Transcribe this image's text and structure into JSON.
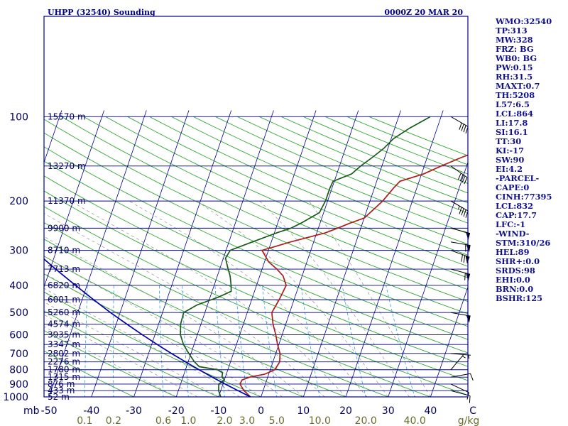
{
  "header": {
    "station": "UHPP (32540) Sounding",
    "time": "0000Z 20 MAR 20"
  },
  "colors": {
    "frame": "#00008b",
    "isobar": "#00008b",
    "isotherm": "#00008b",
    "dry_adiabat": "#2fa82f",
    "moist_adiabat": "#909090",
    "mixing_ratio": "#2ea0e6",
    "temperature": "#b01a1a",
    "dewpoint": "#1a5a1a",
    "parcel": "#0000aa",
    "label": "#000060",
    "bottom_label": "#6b6b2a",
    "index_text": "#10108c",
    "wind": "#000000"
  },
  "indices": [
    "WMO:32540",
    "TP:313",
    "MW:328",
    "FRZ: BG",
    "WB0: BG",
    "PW:0.15",
    "RH:31.5",
    "MAXT:0.7",
    "TH:5208",
    "L57:6.5",
    "LCL:864",
    "LI:17.8",
    "SI:16.1",
    "TT:30",
    "KI:-17",
    "SW:90",
    "EI:4.2",
    "-PARCEL-",
    "CAPE:0",
    "CINH:77395",
    "LCL:832",
    "CAP:17.7",
    "LFC:-1",
    "-WIND-",
    "STM:310/26",
    "HEL:89",
    "SHR+:0.0",
    "SRDS:98",
    "EHI:0.0",
    "BRN:0.0",
    "BSHR:125"
  ],
  "chart_data": {
    "type": "line",
    "title": "UHPP (32540) Sounding",
    "subtitle": "0000Z 20 MAR 20",
    "xlabel": "C",
    "ylabel": "mb",
    "ylim": [
      1000,
      100
    ],
    "xlim": [
      -50,
      50
    ],
    "y_scale": "log-pressure",
    "pressure_ticks": [
      100,
      200,
      300,
      400,
      500,
      600,
      700,
      800,
      900,
      1000
    ],
    "temperature_ticks": [
      -50,
      -40,
      -30,
      -20,
      -10,
      0,
      10,
      20,
      30,
      40,
      50
    ],
    "temperature_tick_labels": [
      "-50",
      "-40",
      "-30",
      "-20",
      "-10",
      "0",
      "10",
      "20",
      "30",
      "40",
      "C"
    ],
    "mixing_ratio_labels": [
      "0.1",
      "0.2",
      "0.6",
      "1.0",
      "2.0",
      "3.0",
      "5.0",
      "10.0",
      "20.0",
      "40.0",
      "g/kg"
    ],
    "mixing_ratio_values": [
      0.1,
      0.2,
      0.6,
      1.0,
      2.0,
      3.0,
      5.0,
      10.0,
      20.0,
      40.0
    ],
    "height_labels": [
      {
        "p": 1000,
        "text": "52 m"
      },
      {
        "p": 950,
        "text": "433 m"
      },
      {
        "p": 900,
        "text": "876 m"
      },
      {
        "p": 850,
        "text": "1315 m"
      },
      {
        "p": 800,
        "text": "1780 m"
      },
      {
        "p": 750,
        "text": "2276 m"
      },
      {
        "p": 700,
        "text": "2802 m"
      },
      {
        "p": 650,
        "text": "3347 m"
      },
      {
        "p": 600,
        "text": "3935 m"
      },
      {
        "p": 550,
        "text": "4574 m"
      },
      {
        "p": 500,
        "text": "5260 m"
      },
      {
        "p": 450,
        "text": "6001 m"
      },
      {
        "p": 400,
        "text": "6820 m"
      },
      {
        "p": 350,
        "text": "7713 m"
      },
      {
        "p": 300,
        "text": "8710 m"
      },
      {
        "p": 250,
        "text": "9900 m"
      },
      {
        "p": 200,
        "text": "11370 m"
      },
      {
        "p": 150,
        "text": "13270 m"
      },
      {
        "p": 100,
        "text": "15570 m"
      }
    ],
    "series": [
      {
        "kind": "temperature",
        "points": [
          [
            1000,
            -2.5
          ],
          [
            950,
            -4.5
          ],
          [
            900,
            -6.0
          ],
          [
            870,
            -5.8
          ],
          [
            850,
            -4.2
          ],
          [
            830,
            -1.0
          ],
          [
            800,
            1.1
          ],
          [
            750,
            1.6
          ],
          [
            700,
            1.0
          ],
          [
            650,
            -0.3
          ],
          [
            600,
            -1.5
          ],
          [
            550,
            -3.0
          ],
          [
            500,
            -4.2
          ],
          [
            450,
            -3.5
          ],
          [
            400,
            -3.0
          ],
          [
            370,
            -4.5
          ],
          [
            350,
            -6.5
          ],
          [
            330,
            -9.0
          ],
          [
            300,
            -11.5
          ],
          [
            280,
            -5.5
          ],
          [
            260,
            2.0
          ],
          [
            250,
            4.5
          ],
          [
            240,
            7.0
          ],
          [
            230,
            10.0
          ],
          [
            200,
            13.0
          ],
          [
            180,
            14.5
          ],
          [
            170,
            15.5
          ],
          [
            160,
            20.5
          ],
          [
            150,
            24.0
          ],
          [
            140,
            28.0
          ],
          [
            130,
            33.0
          ],
          [
            120,
            36.5
          ],
          [
            110,
            42.0
          ],
          [
            100,
            46.5
          ]
        ]
      },
      {
        "kind": "dewpoint",
        "points": [
          [
            1000,
            -9.5
          ],
          [
            950,
            -10.5
          ],
          [
            900,
            -11.0
          ],
          [
            870,
            -10.0
          ],
          [
            850,
            -10.8
          ],
          [
            820,
            -11.0
          ],
          [
            800,
            -12.5
          ],
          [
            780,
            -17.0
          ],
          [
            750,
            -18.5
          ],
          [
            700,
            -20.5
          ],
          [
            650,
            -22.5
          ],
          [
            600,
            -24.0
          ],
          [
            550,
            -24.8
          ],
          [
            500,
            -25.0
          ],
          [
            470,
            -22.5
          ],
          [
            440,
            -18.0
          ],
          [
            420,
            -15.5
          ],
          [
            400,
            -16.0
          ],
          [
            370,
            -17.0
          ],
          [
            350,
            -18.0
          ],
          [
            320,
            -19.5
          ],
          [
            300,
            -19.0
          ],
          [
            280,
            -14.5
          ],
          [
            260,
            -9.5
          ],
          [
            250,
            -6.5
          ],
          [
            240,
            -4.5
          ],
          [
            220,
            -1.0
          ],
          [
            200,
            -0.5
          ],
          [
            180,
            -0.5
          ],
          [
            170,
            -0.3
          ],
          [
            160,
            3.5
          ],
          [
            150,
            5.0
          ],
          [
            140,
            7.0
          ],
          [
            130,
            9.0
          ],
          [
            120,
            10.5
          ],
          [
            110,
            13.5
          ],
          [
            100,
            17.5
          ]
        ]
      },
      {
        "kind": "parcel",
        "points": [
          [
            1000,
            -2.5
          ],
          [
            950,
            -5.9
          ],
          [
            900,
            -9.5
          ],
          [
            850,
            -13.1
          ],
          [
            800,
            -16.8
          ],
          [
            750,
            -20.6
          ],
          [
            700,
            -24.6
          ],
          [
            650,
            -28.7
          ],
          [
            600,
            -33.0
          ],
          [
            550,
            -37.5
          ],
          [
            500,
            -42.3
          ],
          [
            450,
            -47.3
          ],
          [
            400,
            -52.7
          ],
          [
            350,
            -58.7
          ],
          [
            300,
            -65.3
          ],
          [
            250,
            -73.0
          ],
          [
            200,
            -82.0
          ],
          [
            150,
            -93.0
          ],
          [
            125,
            -100.0
          ],
          [
            120,
            -101.5
          ]
        ]
      }
    ],
    "wind_barbs": [
      {
        "p": 950,
        "dir": 105,
        "spd": 10
      },
      {
        "p": 900,
        "dir": 115,
        "spd": 10
      },
      {
        "p": 850,
        "dir": 80,
        "spd": 10
      },
      {
        "p": 800,
        "dir": 40,
        "spd": 5
      },
      {
        "p": 700,
        "dir": 95,
        "spd": 5
      },
      {
        "p": 500,
        "dir": 100,
        "spd": 50
      },
      {
        "p": 350,
        "dir": 105,
        "spd": 60
      },
      {
        "p": 300,
        "dir": 110,
        "spd": 70
      },
      {
        "p": 280,
        "dir": 100,
        "spd": 60
      },
      {
        "p": 250,
        "dir": 105,
        "spd": 50
      },
      {
        "p": 200,
        "dir": 120,
        "spd": 45
      },
      {
        "p": 150,
        "dir": 125,
        "spd": 40
      },
      {
        "p": 100,
        "dir": 120,
        "spd": 40
      }
    ]
  }
}
